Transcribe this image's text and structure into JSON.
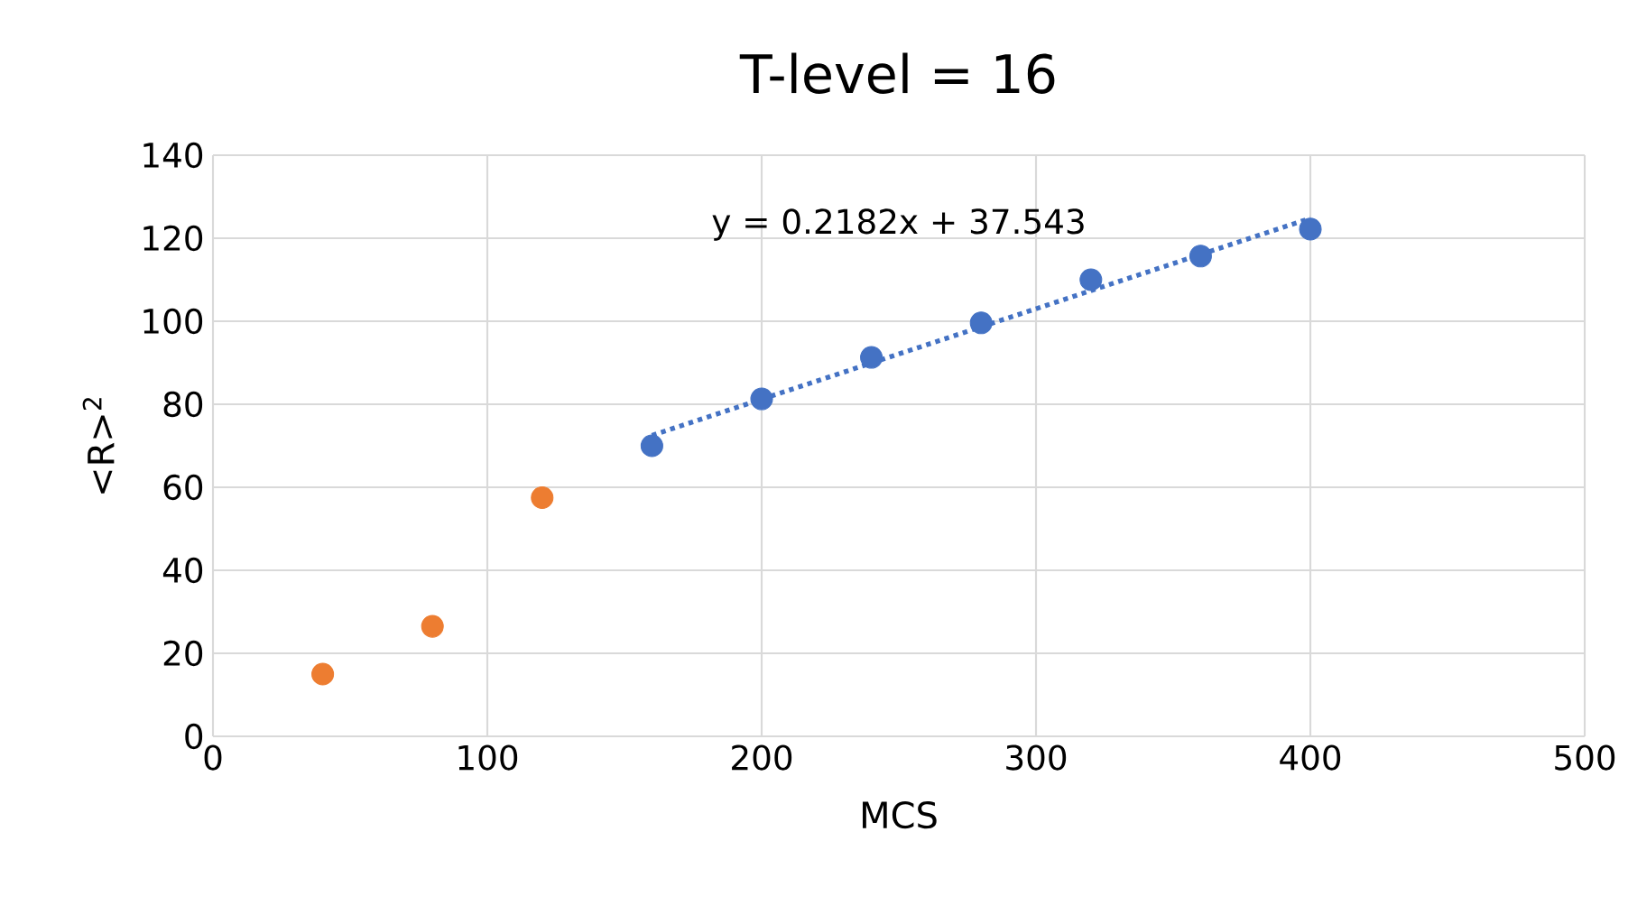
{
  "chart_data": {
    "type": "scatter",
    "title": "T-level = 16",
    "xlabel": "MCS",
    "ylabel": "<R>$^{2}$",
    "series": [
      {
        "marker": "circle",
        "color": "#4472c4",
        "x": [
          160,
          200,
          240,
          280,
          320,
          360,
          400
        ],
        "values": [
          70,
          81.3,
          91.3,
          99.6,
          110,
          115.7,
          122.2
        ]
      },
      {
        "marker": "circle",
        "color": "#ed7d31",
        "x": [
          40,
          80,
          120
        ],
        "values": [
          15,
          26.5,
          57.5
        ]
      },
      {
        "type": "line",
        "line_style": "dotted",
        "marker": "none",
        "color": "#4472c4",
        "x": [
          160,
          400
        ],
        "values": [
          72.5,
          124.8
        ]
      }
    ],
    "annotations": [
      "y = 0.2182x + 37.543"
    ],
    "xlim": [
      0,
      500
    ],
    "xticks": [
      0,
      100,
      200,
      300,
      400,
      500
    ],
    "ylim": [
      0,
      140
    ],
    "yticks": [
      0,
      20,
      40,
      60,
      80,
      100,
      120,
      140
    ],
    "grid": true
  }
}
